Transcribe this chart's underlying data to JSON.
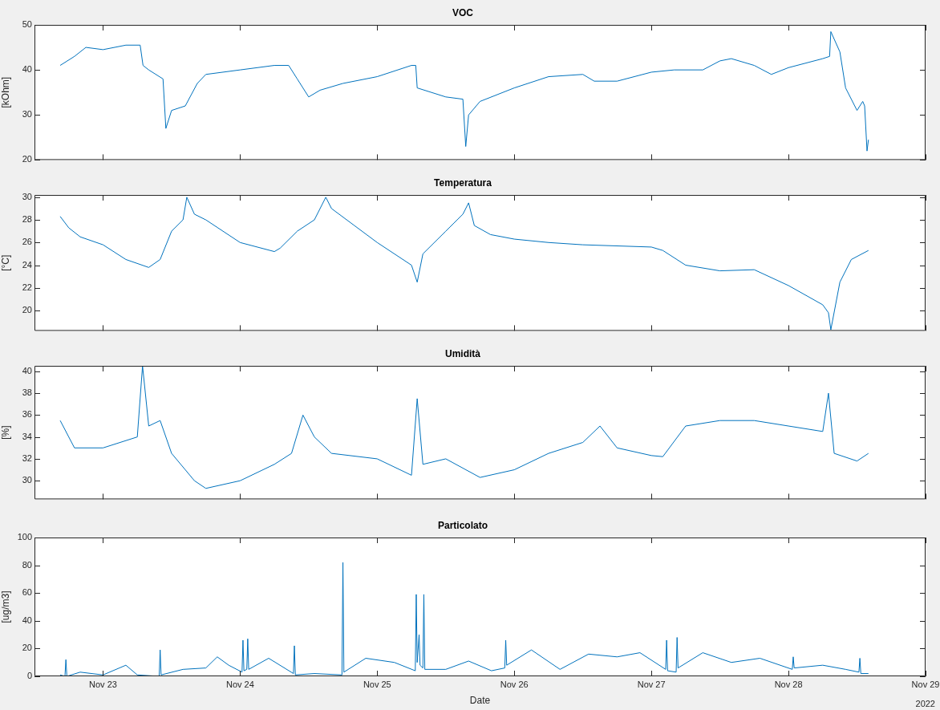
{
  "chart_data": [
    {
      "type": "line",
      "title": "VOC",
      "ylabel": "[kOhm]",
      "marker": "none",
      "tick_labels": "y",
      "xlim": [
        "2022-11-22T12:00",
        "2022-11-29"
      ],
      "xticks": [
        {
          "value": "2022-11-23",
          "label": null
        },
        {
          "value": "2022-11-24",
          "label": null
        },
        {
          "value": "2022-11-25",
          "label": null
        },
        {
          "value": "2022-11-26",
          "label": null
        },
        {
          "value": "2022-11-27",
          "label": null
        },
        {
          "value": "2022-11-28",
          "label": null
        },
        {
          "value": "2022-11-29",
          "label": null
        }
      ],
      "ylim": [
        20,
        50
      ],
      "yticks": [
        20,
        30,
        40,
        50
      ],
      "x": [
        "2022-11-22T16:30",
        "2022-11-22T19:00",
        "2022-11-22T21:00",
        "2022-11-23T00:00",
        "2022-11-23T04:00",
        "2022-11-23T06:30",
        "2022-11-23T07:00",
        "2022-11-23T08:00",
        "2022-11-23T10:30",
        "2022-11-23T11:00",
        "2022-11-23T12:00",
        "2022-11-23T14:24",
        "2022-11-23T16:30",
        "2022-11-23T18:00",
        "2022-11-24T00:00",
        "2022-11-24T06:00",
        "2022-11-24T08:30",
        "2022-11-24T10:00",
        "2022-11-24T12:00",
        "2022-11-24T14:00",
        "2022-11-24T18:00",
        "2022-11-25T00:00",
        "2022-11-25T06:00",
        "2022-11-25T06:45",
        "2022-11-25T07:00",
        "2022-11-25T12:00",
        "2022-11-25T15:00",
        "2022-11-25T15:30",
        "2022-11-25T16:00",
        "2022-11-25T18:00",
        "2022-11-26T00:00",
        "2022-11-26T06:00",
        "2022-11-26T12:00",
        "2022-11-26T14:00",
        "2022-11-26T18:00",
        "2022-11-27T00:00",
        "2022-11-27T04:00",
        "2022-11-27T09:00",
        "2022-11-27T12:00",
        "2022-11-27T14:00",
        "2022-11-27T18:00",
        "2022-11-27T21:00",
        "2022-11-28T00:00",
        "2022-11-28T06:00",
        "2022-11-28T07:12",
        "2022-11-28T07:25",
        "2022-11-28T09:00",
        "2022-11-28T10:00",
        "2022-11-28T12:00",
        "2022-11-28T13:00",
        "2022-11-28T13:20",
        "2022-11-28T13:45",
        "2022-11-28T14:00"
      ],
      "series": [
        {
          "color": "#0072bd",
          "values": [
            41,
            43,
            45,
            44.5,
            45.5,
            45.5,
            41,
            40,
            38,
            27,
            31,
            32,
            37,
            39,
            40,
            41,
            41,
            38,
            34,
            35.5,
            37,
            38.5,
            41,
            41,
            36,
            34,
            33.5,
            23,
            30,
            33,
            36,
            38.5,
            39,
            37.5,
            37.5,
            39.5,
            40,
            40,
            42,
            42.5,
            41,
            39,
            40.5,
            42.5,
            43,
            48.5,
            44,
            36,
            31,
            33,
            32,
            22,
            24.5
          ]
        }
      ]
    },
    {
      "type": "line",
      "title": "Temperatura",
      "ylabel": "[°C]",
      "marker": "none",
      "tick_labels": "y",
      "xlim": [
        "2022-11-22T12:00",
        "2022-11-29"
      ],
      "xticks": [
        {
          "value": "2022-11-23",
          "label": null
        },
        {
          "value": "2022-11-24",
          "label": null
        },
        {
          "value": "2022-11-25",
          "label": null
        },
        {
          "value": "2022-11-26",
          "label": null
        },
        {
          "value": "2022-11-27",
          "label": null
        },
        {
          "value": "2022-11-28",
          "label": null
        },
        {
          "value": "2022-11-29",
          "label": null
        }
      ],
      "ylim": [
        18.2,
        30.2
      ],
      "yticks": [
        20,
        22,
        24,
        26,
        28,
        30
      ],
      "x": [
        "2022-11-22T16:30",
        "2022-11-22T18:00",
        "2022-11-22T20:00",
        "2022-11-23T00:00",
        "2022-11-23T04:00",
        "2022-11-23T08:00",
        "2022-11-23T10:00",
        "2022-11-23T12:00",
        "2022-11-23T14:00",
        "2022-11-23T14:40",
        "2022-11-23T16:00",
        "2022-11-23T18:00",
        "2022-11-24T00:00",
        "2022-11-24T06:00",
        "2022-11-24T07:00",
        "2022-11-24T10:00",
        "2022-11-24T13:00",
        "2022-11-24T15:00",
        "2022-11-24T16:00",
        "2022-11-24T20:00",
        "2022-11-25T00:00",
        "2022-11-25T06:00",
        "2022-11-25T07:00",
        "2022-11-25T08:00",
        "2022-11-25T12:00",
        "2022-11-25T15:00",
        "2022-11-25T16:00",
        "2022-11-25T17:00",
        "2022-11-25T19:50",
        "2022-11-26T00:00",
        "2022-11-26T06:00",
        "2022-11-26T12:00",
        "2022-11-27T00:00",
        "2022-11-27T02:00",
        "2022-11-27T06:00",
        "2022-11-27T12:00",
        "2022-11-27T18:00",
        "2022-11-28T00:00",
        "2022-11-28T06:00",
        "2022-11-28T07:00",
        "2022-11-28T07:25",
        "2022-11-28T09:00",
        "2022-11-28T11:00",
        "2022-11-28T14:00"
      ],
      "series": [
        {
          "color": "#0072bd",
          "values": [
            28.3,
            27.3,
            26.5,
            25.8,
            24.5,
            23.8,
            24.5,
            27,
            28,
            30,
            28.5,
            28,
            26,
            25.2,
            25.5,
            27,
            28,
            30,
            29,
            27.5,
            26,
            24,
            22.5,
            25,
            27,
            28.5,
            29.5,
            27.5,
            26.7,
            26.3,
            26,
            25.8,
            25.6,
            25.3,
            24,
            23.5,
            23.6,
            22.2,
            20.5,
            19.8,
            18.3,
            22.5,
            24.5,
            25.3
          ]
        }
      ]
    },
    {
      "type": "line",
      "title": "Umidità",
      "ylabel": "[%]",
      "marker": "none",
      "tick_labels": "y",
      "xlim": [
        "2022-11-22T12:00",
        "2022-11-29"
      ],
      "xticks": [
        {
          "value": "2022-11-23",
          "label": null
        },
        {
          "value": "2022-11-24",
          "label": null
        },
        {
          "value": "2022-11-25",
          "label": null
        },
        {
          "value": "2022-11-26",
          "label": null
        },
        {
          "value": "2022-11-27",
          "label": null
        },
        {
          "value": "2022-11-28",
          "label": null
        },
        {
          "value": "2022-11-29",
          "label": null
        }
      ],
      "ylim": [
        28.3,
        40.5
      ],
      "yticks": [
        30,
        32,
        34,
        36,
        38,
        40
      ],
      "x": [
        "2022-11-22T16:30",
        "2022-11-22T19:00",
        "2022-11-23T00:00",
        "2022-11-23T06:00",
        "2022-11-23T06:55",
        "2022-11-23T08:00",
        "2022-11-23T10:00",
        "2022-11-23T12:00",
        "2022-11-23T16:00",
        "2022-11-23T18:00",
        "2022-11-24T00:00",
        "2022-11-24T06:00",
        "2022-11-24T09:00",
        "2022-11-24T11:00",
        "2022-11-24T13:00",
        "2022-11-24T16:00",
        "2022-11-25T00:00",
        "2022-11-25T06:00",
        "2022-11-25T07:00",
        "2022-11-25T08:00",
        "2022-11-25T12:00",
        "2022-11-25T18:00",
        "2022-11-26T00:00",
        "2022-11-26T06:00",
        "2022-11-26T12:00",
        "2022-11-26T15:00",
        "2022-11-26T18:00",
        "2022-11-27T00:00",
        "2022-11-27T02:00",
        "2022-11-27T06:00",
        "2022-11-27T12:00",
        "2022-11-27T18:00",
        "2022-11-28T00:00",
        "2022-11-28T06:00",
        "2022-11-28T07:00",
        "2022-11-28T08:00",
        "2022-11-28T12:00",
        "2022-11-28T14:00"
      ],
      "series": [
        {
          "color": "#0072bd",
          "values": [
            35.5,
            33,
            33,
            34,
            40.5,
            35,
            35.5,
            32.5,
            30,
            29.3,
            30,
            31.5,
            32.5,
            36,
            34,
            32.5,
            32,
            30.5,
            37.5,
            31.5,
            32,
            30.3,
            31,
            32.5,
            33.5,
            35,
            33,
            32.3,
            32.2,
            35,
            35.5,
            35.5,
            35,
            34.5,
            38,
            32.5,
            31.8,
            32.5
          ]
        }
      ]
    },
    {
      "type": "line",
      "title": "Particolato",
      "ylabel": "[ug/m3]",
      "xlabel": "Date",
      "annotations": [
        "2022"
      ],
      "marker": "none",
      "xlim": [
        "2022-11-22T12:00",
        "2022-11-29"
      ],
      "xticks": [
        {
          "value": "2022-11-23",
          "label": "Nov 23"
        },
        {
          "value": "2022-11-24",
          "label": "Nov 24"
        },
        {
          "value": "2022-11-25",
          "label": "Nov 25"
        },
        {
          "value": "2022-11-26",
          "label": "Nov 26"
        },
        {
          "value": "2022-11-27",
          "label": "Nov 27"
        },
        {
          "value": "2022-11-28",
          "label": "Nov 28"
        },
        {
          "value": "2022-11-29",
          "label": "Nov 29"
        }
      ],
      "ylim": [
        0,
        100
      ],
      "yticks": [
        0,
        20,
        40,
        60,
        80,
        100
      ],
      "x": [
        "2022-11-22T16:30",
        "2022-11-22T17:20",
        "2022-11-22T17:30",
        "2022-11-22T17:40",
        "2022-11-22T20:00",
        "2022-11-23T00:00",
        "2022-11-23T04:00",
        "2022-11-23T06:00",
        "2022-11-23T09:50",
        "2022-11-23T10:00",
        "2022-11-23T10:10",
        "2022-11-23T14:00",
        "2022-11-23T18:00",
        "2022-11-23T20:00",
        "2022-11-23T22:00",
        "2022-11-24T00:20",
        "2022-11-24T00:30",
        "2022-11-24T00:40",
        "2022-11-24T01:10",
        "2022-11-24T01:20",
        "2022-11-24T01:30",
        "2022-11-24T05:00",
        "2022-11-24T09:20",
        "2022-11-24T09:30",
        "2022-11-24T09:40",
        "2022-11-24T13:00",
        "2022-11-24T17:50",
        "2022-11-24T18:00",
        "2022-11-24T18:10",
        "2022-11-24T22:00",
        "2022-11-25T03:00",
        "2022-11-25T06:40",
        "2022-11-25T06:50",
        "2022-11-25T07:00",
        "2022-11-25T07:20",
        "2022-11-25T07:30",
        "2022-11-25T08:00",
        "2022-11-25T08:10",
        "2022-11-25T08:20",
        "2022-11-25T12:00",
        "2022-11-25T16:00",
        "2022-11-25T20:00",
        "2022-11-25T22:20",
        "2022-11-25T22:30",
        "2022-11-25T22:40",
        "2022-11-26T03:00",
        "2022-11-26T08:00",
        "2022-11-26T13:00",
        "2022-11-26T18:00",
        "2022-11-26T22:00",
        "2022-11-27T02:30",
        "2022-11-27T02:40",
        "2022-11-27T02:50",
        "2022-11-27T04:20",
        "2022-11-27T04:30",
        "2022-11-27T04:40",
        "2022-11-27T09:00",
        "2022-11-27T14:00",
        "2022-11-27T19:00",
        "2022-11-28T00:40",
        "2022-11-28T00:50",
        "2022-11-28T01:00",
        "2022-11-28T06:00",
        "2022-11-28T10:00",
        "2022-11-28T12:20",
        "2022-11-28T12:30",
        "2022-11-28T12:40",
        "2022-11-28T14:00"
      ],
      "series": [
        {
          "color": "#0072bd",
          "values": [
            1,
            0,
            12,
            0,
            3,
            1,
            8,
            1,
            0,
            19,
            1,
            5,
            6,
            14,
            8,
            3,
            26,
            4,
            5,
            27,
            5,
            13,
            2,
            22,
            1,
            2,
            1,
            82,
            3,
            13,
            10,
            4,
            59,
            10,
            30,
            8,
            6,
            59,
            5,
            5,
            11,
            4,
            6,
            26,
            8,
            19,
            5,
            16,
            14,
            17,
            5,
            26,
            4,
            3,
            28,
            6,
            17,
            10,
            13,
            5,
            14,
            6,
            8,
            5,
            3,
            13,
            2,
            2
          ]
        }
      ]
    }
  ]
}
